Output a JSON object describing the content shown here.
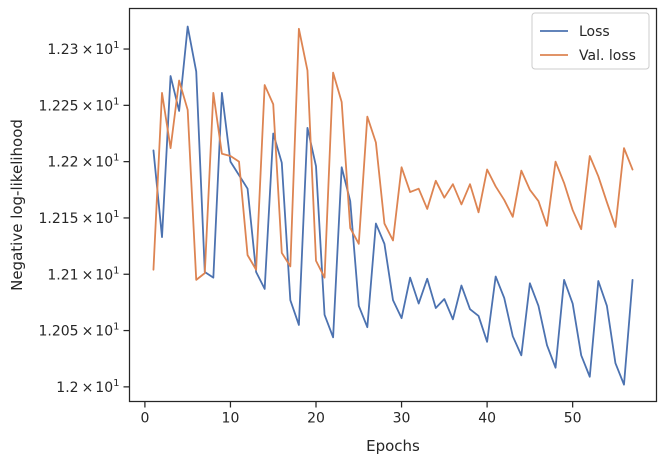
{
  "chart_data": {
    "type": "line",
    "title": "",
    "xlabel": "Epochs",
    "ylabel": "Negative log-likelihood",
    "xlim": [
      -1.8,
      59.8
    ],
    "ylim": [
      11.987,
      12.336
    ],
    "x_ticks": [
      0,
      10,
      20,
      30,
      40,
      50
    ],
    "x_tick_labels": [
      "0",
      "10",
      "20",
      "30",
      "40",
      "50"
    ],
    "y_ticks": [
      12.0,
      12.05,
      12.1,
      12.15,
      12.2,
      12.25,
      12.3
    ],
    "y_tick_labels": [
      {
        "mantissa": "1.2",
        "times": "×",
        "base": "10",
        "exp": "1"
      },
      {
        "mantissa": "1.205",
        "times": "×",
        "base": "10",
        "exp": "1"
      },
      {
        "mantissa": "1.21",
        "times": "×",
        "base": "10",
        "exp": "1"
      },
      {
        "mantissa": "1.215",
        "times": "×",
        "base": "10",
        "exp": "1"
      },
      {
        "mantissa": "1.22",
        "times": "×",
        "base": "10",
        "exp": "1"
      },
      {
        "mantissa": "1.225",
        "times": "×",
        "base": "10",
        "exp": "1"
      },
      {
        "mantissa": "1.23",
        "times": "×",
        "base": "10",
        "exp": "1"
      }
    ],
    "legend_position": "top-right",
    "grid": false,
    "series": [
      {
        "name": "Loss",
        "color": "#4c72b0",
        "x": [
          1,
          2,
          3,
          4,
          5,
          6,
          7,
          8,
          9,
          10,
          11,
          12,
          13,
          14,
          15,
          16,
          17,
          18,
          19,
          20,
          21,
          22,
          23,
          24,
          25,
          26,
          27,
          28,
          29,
          30,
          31,
          32,
          33,
          34,
          35,
          36,
          37,
          38,
          39,
          40,
          41,
          42,
          43,
          44,
          45,
          46,
          47,
          48,
          49,
          50,
          51,
          52,
          53,
          54,
          55,
          56,
          57
        ],
        "values": [
          12.21,
          12.133,
          12.276,
          12.245,
          12.32,
          12.28,
          12.102,
          12.097,
          12.261,
          12.2,
          12.188,
          12.176,
          12.102,
          12.087,
          12.225,
          12.199,
          12.077,
          12.055,
          12.23,
          12.196,
          12.064,
          12.044,
          12.195,
          12.165,
          12.072,
          12.053,
          12.145,
          12.127,
          12.077,
          12.061,
          12.097,
          12.074,
          12.096,
          12.07,
          12.078,
          12.06,
          12.09,
          12.069,
          12.063,
          12.04,
          12.098,
          12.079,
          12.045,
          12.028,
          12.092,
          12.072,
          12.037,
          12.017,
          12.095,
          12.074,
          12.028,
          12.009,
          12.094,
          12.072,
          12.021,
          12.002,
          12.095
        ]
      },
      {
        "name": "Val. loss",
        "color": "#dd8452",
        "x": [
          1,
          2,
          3,
          4,
          5,
          6,
          7,
          8,
          9,
          10,
          11,
          12,
          13,
          14,
          15,
          16,
          17,
          18,
          19,
          20,
          21,
          22,
          23,
          24,
          25,
          26,
          27,
          28,
          29,
          30,
          31,
          32,
          33,
          34,
          35,
          36,
          37,
          38,
          39,
          40,
          41,
          42,
          43,
          44,
          45,
          46,
          47,
          48,
          49,
          50,
          51,
          52,
          53,
          54,
          55,
          56,
          57
        ],
        "values": [
          12.104,
          12.261,
          12.212,
          12.272,
          12.246,
          12.095,
          12.101,
          12.261,
          12.207,
          12.205,
          12.2,
          12.117,
          12.104,
          12.268,
          12.251,
          12.119,
          12.107,
          12.318,
          12.281,
          12.112,
          12.097,
          12.279,
          12.253,
          12.141,
          12.127,
          12.24,
          12.217,
          12.145,
          12.13,
          12.195,
          12.173,
          12.176,
          12.158,
          12.183,
          12.168,
          12.18,
          12.162,
          12.18,
          12.155,
          12.193,
          12.178,
          12.166,
          12.151,
          12.192,
          12.175,
          12.165,
          12.143,
          12.2,
          12.181,
          12.157,
          12.14,
          12.205,
          12.187,
          12.164,
          12.142,
          12.212,
          12.193
        ]
      }
    ]
  }
}
